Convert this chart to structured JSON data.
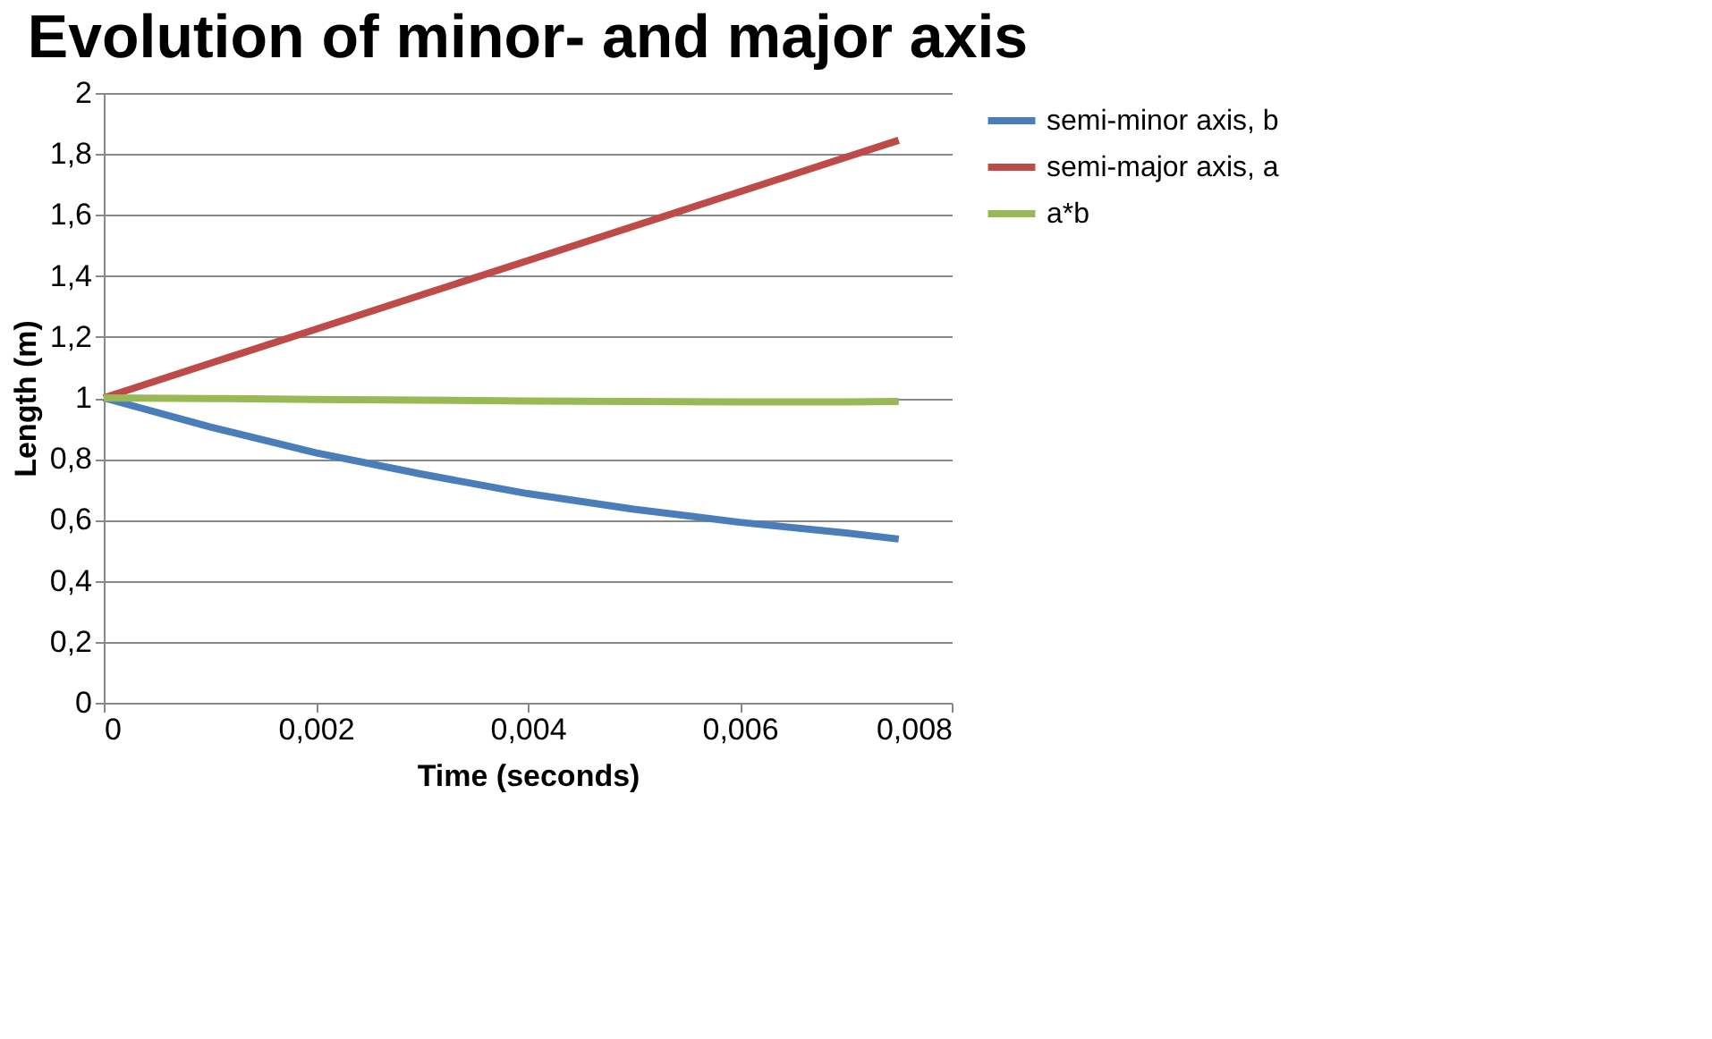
{
  "chart_data": {
    "type": "line",
    "title": "Evolution of minor- and major axis",
    "xlabel": "Time (seconds)",
    "ylabel": "Length  (m)",
    "x": [
      0,
      0.001,
      0.002,
      0.003,
      0.004,
      0.005,
      0.006,
      0.007,
      0.0075
    ],
    "series": [
      {
        "name": "semi-minor axis, b",
        "color": "#4a7ebb",
        "values": [
          1,
          0.905,
          0.82,
          0.75,
          0.686,
          0.635,
          0.592,
          0.557,
          0.537
        ]
      },
      {
        "name": "semi-major axis, a",
        "color": "#be4b48",
        "values": [
          1,
          1.113,
          1.225,
          1.338,
          1.45,
          1.563,
          1.676,
          1.789,
          1.845
        ]
      },
      {
        "name": "a*b",
        "color": "#98b954",
        "values": [
          1,
          0.998,
          0.995,
          0.993,
          0.99,
          0.988,
          0.987,
          0.987,
          0.988
        ]
      }
    ],
    "xlim": [
      0,
      0.008
    ],
    "ylim": [
      0,
      2
    ],
    "xticks": [
      0,
      {
        "value": 0.002,
        "label": "0,002"
      },
      {
        "value": 0.004,
        "label": "0,004"
      },
      {
        "value": 0.006,
        "label": "0,006"
      },
      {
        "value": 0.008,
        "label": "0,008"
      }
    ],
    "yticks": [
      0,
      {
        "value": 0.2,
        "label": "0,2"
      },
      {
        "value": 0.4,
        "label": "0,4"
      },
      {
        "value": 0.6,
        "label": "0,6"
      },
      {
        "value": 0.8,
        "label": "0,8"
      },
      1,
      {
        "value": 1.2,
        "label": "1,2"
      },
      {
        "value": 1.4,
        "label": "1,4"
      },
      {
        "value": 1.6,
        "label": "1,6"
      },
      {
        "value": 1.8,
        "label": "1,8"
      },
      2
    ],
    "grid": "y",
    "legend": "right",
    "marker": "none",
    "line_style": "solid"
  }
}
